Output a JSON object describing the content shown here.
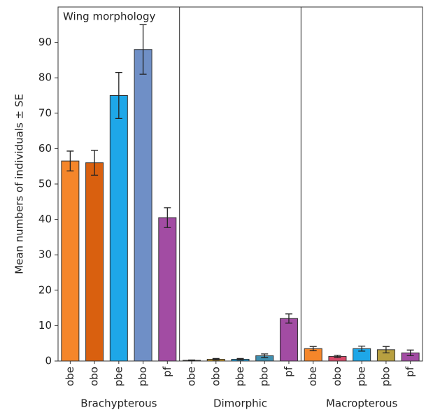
{
  "chart_data": {
    "type": "bar",
    "title": "Wing morphology",
    "y_label": "Mean numbers of individuals ± SE",
    "ylim": [
      0,
      100
    ],
    "yticks": [
      0,
      10,
      20,
      30,
      40,
      50,
      60,
      70,
      80,
      90
    ],
    "groups": [
      {
        "name": "Brachypterous",
        "categories": [
          "obe",
          "obo",
          "pbe",
          "pbo",
          "pf"
        ],
        "values": [
          56.5,
          56,
          75,
          88,
          40.5
        ],
        "errors": [
          2.8,
          3.5,
          6.5,
          7,
          2.8
        ],
        "colors": [
          "#f5862a",
          "#d9600f",
          "#1ea7e8",
          "#6f8fc6",
          "#a24ca3"
        ]
      },
      {
        "name": "Dimorphic",
        "categories": [
          "obe",
          "obo",
          "pbe",
          "pbo",
          "pf"
        ],
        "values": [
          0.2,
          0.5,
          0.5,
          1.5,
          12
        ],
        "errors": [
          0.1,
          0.2,
          0.2,
          0.5,
          1.3
        ],
        "colors": [
          "#f5862a",
          "#d9a020",
          "#1ea7e8",
          "#3f8fb0",
          "#a24ca3"
        ]
      },
      {
        "name": "Macropterous",
        "categories": [
          "obe",
          "obo",
          "pbe",
          "pbo",
          "pf"
        ],
        "values": [
          3.5,
          1.3,
          3.5,
          3.2,
          2.3
        ],
        "errors": [
          0.6,
          0.3,
          0.7,
          0.9,
          0.8
        ],
        "colors": [
          "#f5862a",
          "#d94a6a",
          "#1ea7e8",
          "#b8a040",
          "#a24ca3"
        ]
      }
    ]
  }
}
